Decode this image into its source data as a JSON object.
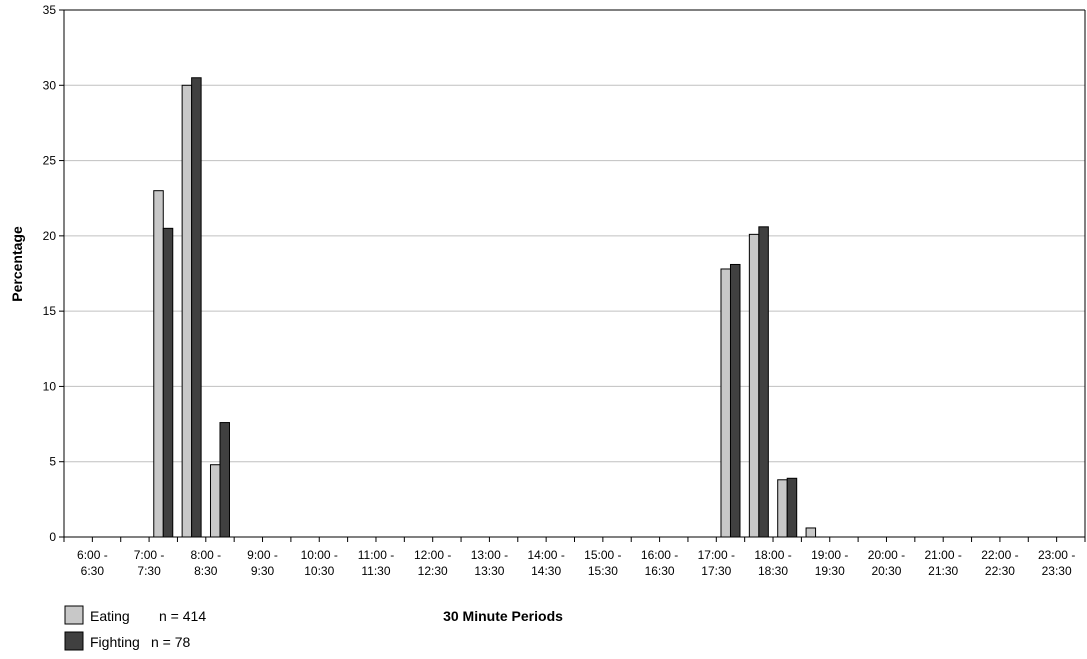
{
  "colors": {
    "eating": "#c8c8c8",
    "fighting": "#404040",
    "grid": "#c0c0c0",
    "axis": "#000000"
  },
  "chart_data": {
    "type": "bar",
    "title": "",
    "xlabel": "30 Minute Periods",
    "ylabel": "Percentage",
    "ylim": [
      0,
      35
    ],
    "yticks": [
      0,
      5,
      10,
      15,
      20,
      25,
      30,
      35
    ],
    "grid": "horizontal",
    "legend_position": "bottom-left",
    "x_tick_labels": [
      {
        "line1": "6:00 -",
        "line2": "6:30"
      },
      {
        "line1": "7:00 -",
        "line2": "7:30"
      },
      {
        "line1": "8:00 -",
        "line2": "8:30"
      },
      {
        "line1": "9:00 -",
        "line2": "9:30"
      },
      {
        "line1": "10:00 -",
        "line2": "10:30"
      },
      {
        "line1": "11:00 -",
        "line2": "11:30"
      },
      {
        "line1": "12:00 -",
        "line2": "12:30"
      },
      {
        "line1": "13:00 -",
        "line2": "13:30"
      },
      {
        "line1": "14:00 -",
        "line2": "14:30"
      },
      {
        "line1": "15:00 -",
        "line2": "15:30"
      },
      {
        "line1": "16:00 -",
        "line2": "16:30"
      },
      {
        "line1": "17:00 -",
        "line2": "17:30"
      },
      {
        "line1": "18:00 -",
        "line2": "18:30"
      },
      {
        "line1": "19:00 -",
        "line2": "19:30"
      },
      {
        "line1": "20:00 -",
        "line2": "20:30"
      },
      {
        "line1": "21:00 -",
        "line2": "21:30"
      },
      {
        "line1": "22:00 -",
        "line2": "22:30"
      },
      {
        "line1": "23:00 -",
        "line2": "23:30"
      }
    ],
    "categories": [
      "6:00",
      "6:30",
      "7:00",
      "7:30",
      "8:00",
      "8:30",
      "9:00",
      "9:30",
      "10:00",
      "10:30",
      "11:00",
      "11:30",
      "12:00",
      "12:30",
      "13:00",
      "13:30",
      "14:00",
      "14:30",
      "15:00",
      "15:30",
      "16:00",
      "16:30",
      "17:00",
      "17:30",
      "18:00",
      "18:30",
      "19:00",
      "19:30",
      "20:00",
      "20:30",
      "21:00",
      "21:30",
      "22:00",
      "22:30",
      "23:00",
      "23:30"
    ],
    "series": [
      {
        "name": "Eating",
        "values": [
          0,
          0,
          0,
          23.0,
          30.0,
          4.8,
          0,
          0,
          0,
          0,
          0,
          0,
          0,
          0,
          0,
          0,
          0,
          0,
          0,
          0,
          0,
          0,
          0,
          17.8,
          20.1,
          3.8,
          0.6,
          0,
          0,
          0,
          0,
          0,
          0,
          0,
          0,
          0
        ]
      },
      {
        "name": "Fighting",
        "values": [
          0,
          0,
          0,
          20.5,
          30.5,
          7.6,
          0,
          0,
          0,
          0,
          0,
          0,
          0,
          0,
          0,
          0,
          0,
          0,
          0,
          0,
          0,
          0,
          0,
          18.1,
          20.6,
          3.9,
          0,
          0,
          0,
          0,
          0,
          0,
          0,
          0,
          0,
          0
        ]
      }
    ],
    "legend": [
      {
        "key": "eating",
        "label": "Eating",
        "n_text": "n = 414"
      },
      {
        "key": "fighting",
        "label": "Fighting",
        "n_text": "n = 78"
      }
    ]
  }
}
